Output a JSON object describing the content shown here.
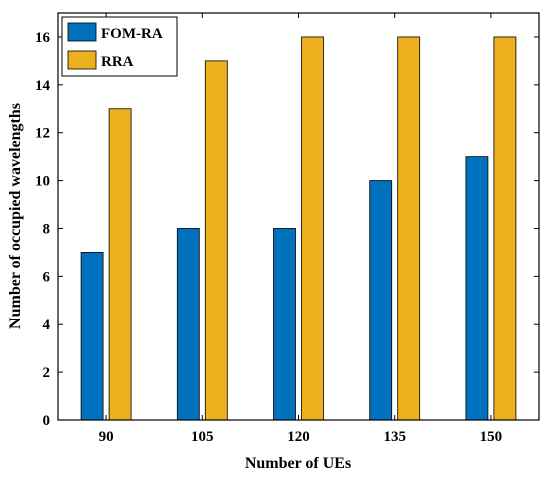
{
  "chart_data": {
    "type": "bar",
    "categories": [
      "90",
      "105",
      "120",
      "135",
      "150"
    ],
    "series": [
      {
        "name": "FOM-RA",
        "values": [
          7,
          8,
          8,
          10,
          11
        ],
        "color": "#0072bd"
      },
      {
        "name": "RRA",
        "values": [
          13,
          15,
          16,
          16,
          16
        ],
        "color": "#edb120"
      }
    ],
    "title": "",
    "xlabel": "Number of UEs",
    "ylabel": "Number of occupied wavelengths",
    "ylim": [
      0,
      17
    ],
    "yticks": [
      0,
      2,
      4,
      6,
      8,
      10,
      12,
      14,
      16
    ],
    "grid": false,
    "legend_position": "top-left"
  }
}
